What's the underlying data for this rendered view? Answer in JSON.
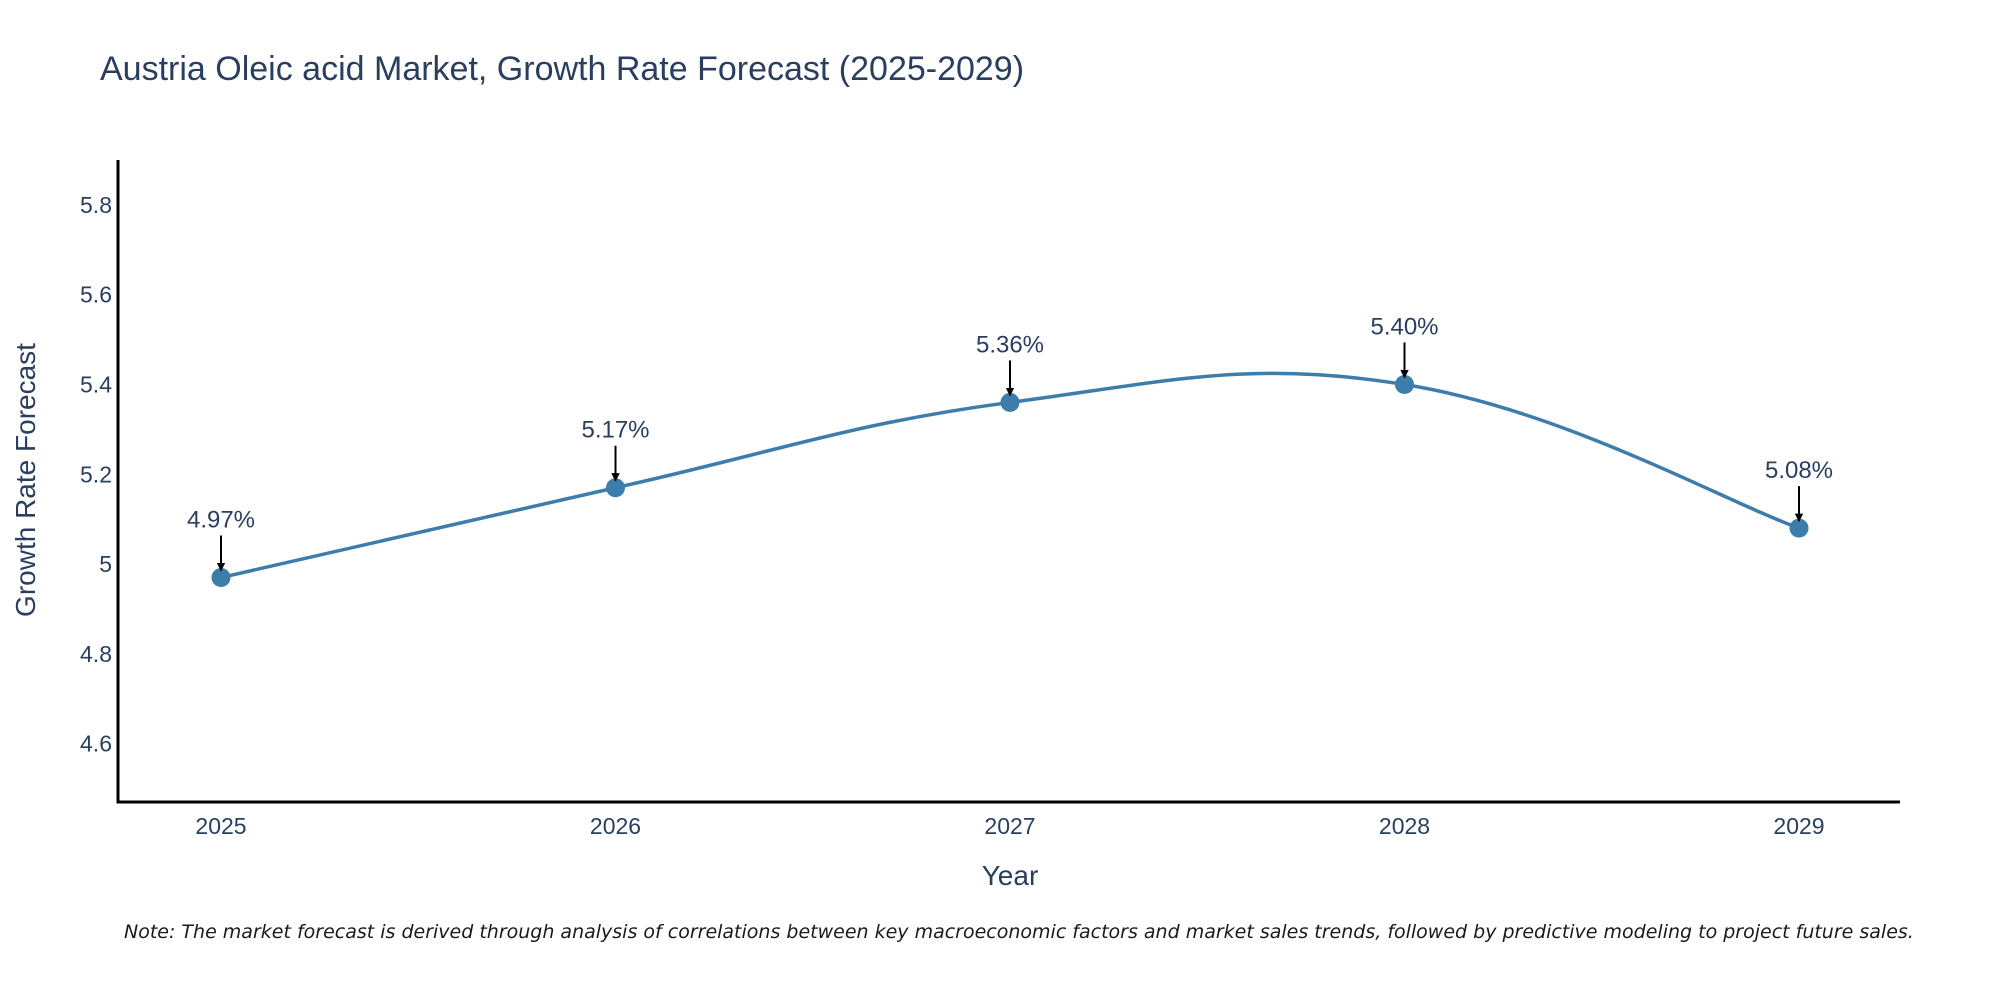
{
  "chart_data": {
    "type": "line",
    "title": "Austria Oleic acid Market, Growth Rate Forecast (2025-2029)",
    "xlabel": "Year",
    "ylabel": "Growth Rate Forecast",
    "categories": [
      "2025",
      "2026",
      "2027",
      "2028",
      "2029"
    ],
    "values": [
      4.97,
      5.17,
      5.36,
      5.4,
      5.08
    ],
    "data_labels": [
      "4.97%",
      "5.17%",
      "5.36%",
      "5.40%",
      "5.08%"
    ],
    "yticks": [
      4.6,
      4.8,
      5,
      5.2,
      5.4,
      5.6,
      5.8
    ],
    "ytick_labels": [
      "4.6",
      "4.8",
      "5",
      "5.2",
      "5.4",
      "5.6",
      "5.8"
    ],
    "ylim": [
      4.47,
      5.9
    ],
    "grid": false,
    "line_color": "#3d7dab",
    "marker_color": "#3d7dab",
    "arrow_color": "#000000"
  },
  "footnote": "Note: The market forecast is derived through analysis of correlations between key macroeconomic factors and market sales trends, followed by predictive modeling to project future sales."
}
